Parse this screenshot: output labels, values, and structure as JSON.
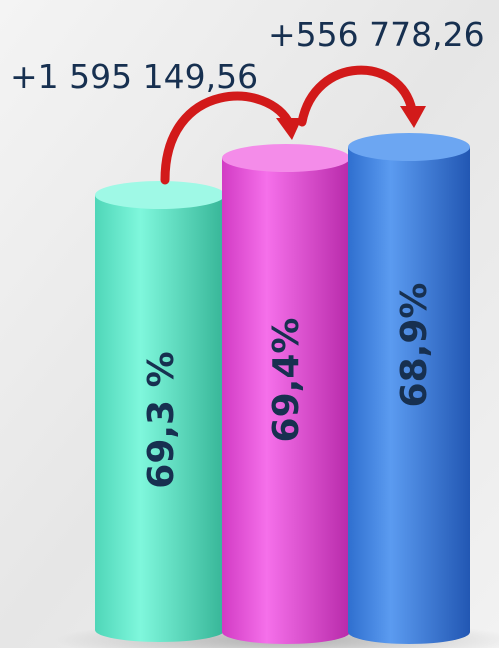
{
  "annotations": [
    "+1 595 149,56",
    "+556 778,26"
  ],
  "bars": [
    {
      "label": "69,3 %"
    },
    {
      "label": "69,4%"
    },
    {
      "label": "68,9%"
    }
  ]
}
